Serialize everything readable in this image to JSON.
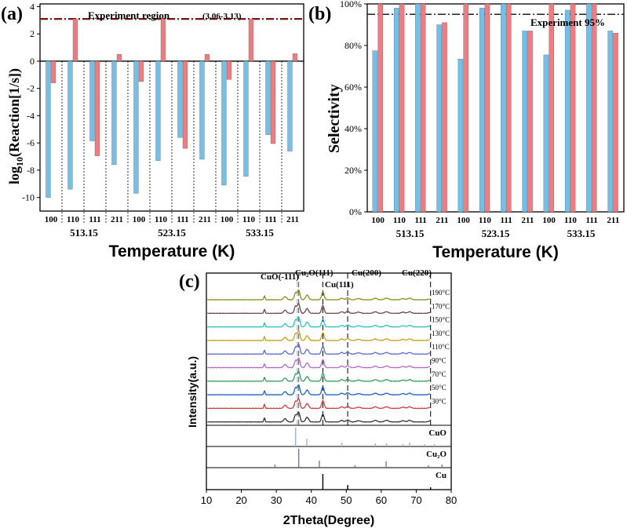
{
  "colors": {
    "blue": "#6fc0ea",
    "red": "#f07b80",
    "dashred": "#7a1010",
    "black": "#000000",
    "cuo_label": "#9fb3d1",
    "cu2o_label": "#7d7598"
  },
  "chart_data": [
    {
      "panel": "(a)",
      "type": "bar",
      "ylabel": "log10(Reaction[1/s])",
      "xlabel": "Temperature (K)",
      "ylim": [
        -11,
        4.2
      ],
      "yticks": [
        "4",
        "2",
        "0",
        "-2",
        "-4",
        "-6",
        "-8",
        "-10"
      ],
      "facets": [
        "100",
        "110",
        "111",
        "211"
      ],
      "categories": [
        "513.15",
        "523.15",
        "533.15"
      ],
      "annotation": "Experiment region",
      "annotation_range": "(3.06-3.13)",
      "experiment_value": 3.1,
      "series": [
        {
          "color": "blue",
          "values": [
            [
              -10.0,
              -9.4,
              -5.85,
              -7.6
            ],
            [
              -9.7,
              -7.3,
              -5.6,
              -7.2
            ],
            [
              -9.1,
              -8.45,
              -5.4,
              -6.6
            ]
          ]
        },
        {
          "color": "red",
          "values": [
            [
              -1.6,
              3.1,
              -6.95,
              0.5
            ],
            [
              -1.5,
              3.1,
              -6.4,
              0.5
            ],
            [
              -1.35,
              3.1,
              -6.05,
              0.55
            ]
          ]
        }
      ]
    },
    {
      "panel": "(b)",
      "type": "bar",
      "ylabel": "Selectivity",
      "xlabel": "Temperature (K)",
      "ylim": [
        0,
        100
      ],
      "yticks": [
        "100%",
        "80%",
        "60%",
        "40%",
        "20%",
        "0%"
      ],
      "facets": [
        "100",
        "110",
        "111",
        "211"
      ],
      "categories": [
        "513.15",
        "523.15",
        "533.15"
      ],
      "annotation": "Experiment  95%",
      "experiment_value": 95,
      "series": [
        {
          "color": "blue",
          "values": [
            [
              77.5,
              98,
              100,
              90
            ],
            [
              73.5,
              98,
              100,
              87
            ],
            [
              75.5,
              97,
              100,
              87
            ]
          ]
        },
        {
          "color": "red",
          "values": [
            [
              100,
              100,
              100,
              91
            ],
            [
              100,
              100,
              100,
              87
            ],
            [
              100,
              100,
              100,
              86
            ]
          ]
        }
      ]
    },
    {
      "panel": "(c)",
      "type": "line",
      "xlabel": "2Theta(Degree)",
      "ylabel": "Intensity(a.u.)",
      "xlim": [
        10,
        80
      ],
      "xticks": [
        "10",
        "20",
        "30",
        "40",
        "50",
        "60",
        "70",
        "80"
      ],
      "peak_labels": [
        "CuO(-111)",
        "Cu₂O(111)",
        "Cu(111)",
        "Cu(200)",
        "Cu(220)"
      ],
      "series": [
        {
          "name": "190°C",
          "color": "#8b8b1a"
        },
        {
          "name": "170°C",
          "color": "#6a4a4a"
        },
        {
          "name": "150°C",
          "color": "#2bc0c0"
        },
        {
          "name": "130°C",
          "color": "#c6a019"
        },
        {
          "name": "110°C",
          "color": "#5a6ad0"
        },
        {
          "name": "90°C",
          "color": "#b469c8"
        },
        {
          "name": "70°C",
          "color": "#2d9f5a"
        },
        {
          "name": "50°C",
          "color": "#1e5fc8"
        },
        {
          "name": "30°C",
          "color": "#d43c3c"
        },
        {
          "name": "",
          "color": "#333333"
        }
      ],
      "references": [
        {
          "name": "CuO",
          "color": "cuo_label",
          "peaks": [
            35.5,
            38.7,
            48.7,
            58.3,
            61.5,
            66.2,
            68.1,
            72.4,
            75.2
          ]
        },
        {
          "name": "Cu₂O",
          "color": "cu2o_label",
          "peaks": [
            29.6,
            36.4,
            42.3,
            52.5,
            61.4,
            73.5,
            77.4
          ]
        },
        {
          "name": "Cu",
          "color": "black",
          "peaks": [
            43.3,
            50.4,
            74.1
          ]
        }
      ]
    }
  ],
  "panel_a_letter": "(a)",
  "panel_b_letter": "(b)",
  "panel_c_letter": "(c)"
}
